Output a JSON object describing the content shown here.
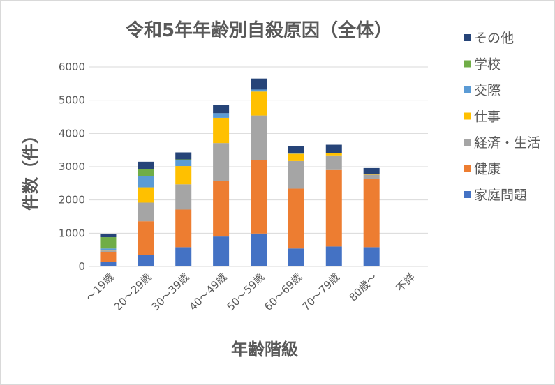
{
  "chart_data": {
    "type": "bar",
    "stacked": true,
    "title": "令和5年年齢別自殺原因（全体）",
    "xlabel": "年齢階級",
    "ylabel": "件数（件）",
    "ylim": [
      0,
      6000
    ],
    "yticks": [
      0,
      1000,
      2000,
      3000,
      4000,
      5000,
      6000
    ],
    "grid": true,
    "legend_position": "right",
    "categories": [
      "～19歳",
      "20～29歳",
      "30～39歳",
      "40～49歳",
      "50～59歳",
      "60～69歳",
      "70～79歳",
      "80歳～",
      "不詳"
    ],
    "series": [
      {
        "name": "家庭問題",
        "color": "#4472C4",
        "values": [
          130,
          350,
          580,
          900,
          990,
          540,
          600,
          580,
          0
        ]
      },
      {
        "name": "健康",
        "color": "#ED7D31",
        "values": [
          290,
          1010,
          1130,
          1680,
          2200,
          1800,
          2300,
          2060,
          0
        ]
      },
      {
        "name": "経済・生活",
        "color": "#A5A5A5",
        "values": [
          60,
          560,
          760,
          1130,
          1350,
          830,
          440,
          120,
          0
        ]
      },
      {
        "name": "仕事",
        "color": "#FFC000",
        "values": [
          20,
          460,
          550,
          760,
          720,
          220,
          60,
          10,
          0
        ]
      },
      {
        "name": "交際",
        "color": "#5B9BD5",
        "values": [
          40,
          330,
          190,
          140,
          60,
          10,
          10,
          0,
          0
        ]
      },
      {
        "name": "学校",
        "color": "#70AD47",
        "values": [
          340,
          220,
          10,
          0,
          0,
          0,
          0,
          0,
          0
        ]
      },
      {
        "name": "その他",
        "color": "#264478",
        "values": [
          90,
          220,
          210,
          250,
          330,
          220,
          250,
          190,
          0
        ]
      }
    ]
  }
}
